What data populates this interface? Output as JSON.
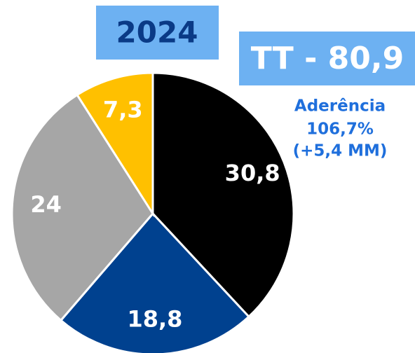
{
  "chart_data": {
    "type": "pie",
    "title": "2024",
    "subtitle": "TT - 80,9",
    "annotations": [
      "Aderência",
      "106,7%",
      "(+5,4 MM)"
    ],
    "categories": [
      null,
      null,
      null,
      null
    ],
    "values": [
      30.8,
      18.8,
      24,
      7.3
    ],
    "value_labels": [
      "30,8",
      "18,8",
      "24",
      "7,3"
    ],
    "colors": [
      "#000000",
      "#00418f",
      "#a6a6a6",
      "#ffc000"
    ]
  }
}
